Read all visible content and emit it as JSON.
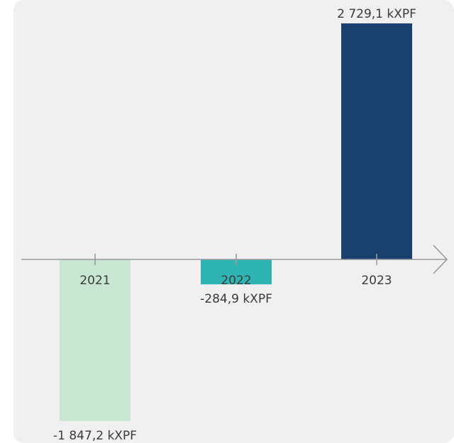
{
  "chart_data": {
    "type": "bar",
    "categories": [
      "2021",
      "2022",
      "2023"
    ],
    "values": [
      -1847.2,
      -284.9,
      2729.1
    ],
    "value_labels": [
      "-1 847,2 kXPF",
      "-284,9 kXPF",
      "2 729,1 kXPF"
    ],
    "colors": [
      "#c8e6d1",
      "#2fb4b4",
      "#1a416e"
    ],
    "ylim": [
      -1847.2,
      2729.1
    ],
    "grid": false,
    "legend": "none"
  }
}
